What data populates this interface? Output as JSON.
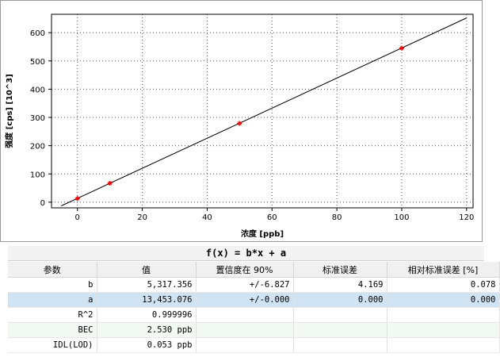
{
  "chart_data": {
    "type": "scatter",
    "xlabel": "浓度 [ppb]",
    "ylabel": "强度 [cps] [10^3]",
    "xlim": [
      -8,
      122
    ],
    "ylim": [
      -20,
      665
    ],
    "x_ticks": [
      0,
      20,
      40,
      60,
      80,
      100,
      120
    ],
    "y_ticks": [
      0,
      100,
      200,
      300,
      400,
      500,
      600
    ],
    "grid": true,
    "points": [
      {
        "x": 0,
        "y": 13
      },
      {
        "x": 10,
        "y": 67
      },
      {
        "x": 50,
        "y": 279
      },
      {
        "x": 100,
        "y": 545
      }
    ],
    "fit_line": {
      "x0": -5,
      "y0": -13,
      "x1": 120,
      "y1": 652
    },
    "point_color": "#ff0000",
    "line_color": "#000000"
  },
  "results": {
    "formula": "f(x) = b*x + a",
    "headers": [
      "参数",
      "值",
      "置信度在 90%",
      "标准误差",
      "相对标准误差 [%]"
    ],
    "rows": [
      {
        "param": "b",
        "value": "5,317.356",
        "ci": "+/-6.827",
        "se": "4.169",
        "rse": "0.078"
      },
      {
        "param": "a",
        "value": "13,453.076",
        "ci": "+/-0.000",
        "se": "0.000",
        "rse": "0.000"
      },
      {
        "param": "R^2",
        "value": "0.999996",
        "ci": "",
        "se": "",
        "rse": ""
      },
      {
        "param": "BEC",
        "value": "2.530 ppb",
        "ci": "",
        "se": "",
        "rse": ""
      },
      {
        "param": "IDL(LOD)",
        "value": "0.053 ppb",
        "ci": "",
        "se": "",
        "rse": ""
      }
    ]
  }
}
